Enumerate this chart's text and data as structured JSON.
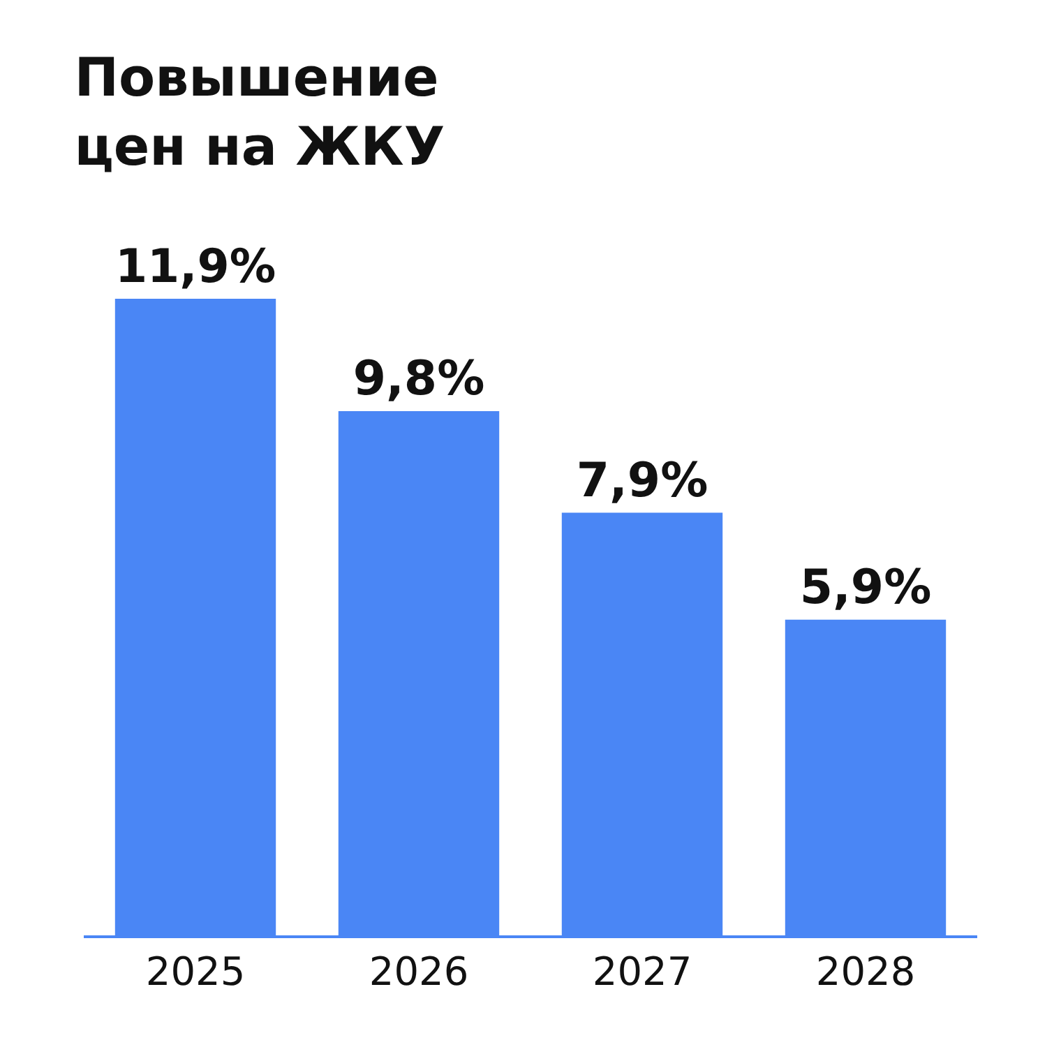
{
  "chart_data": {
    "type": "bar",
    "title": "Повышение\nцен на ЖКУ",
    "categories": [
      "2025",
      "2026",
      "2027",
      "2028"
    ],
    "values": [
      11.9,
      9.8,
      7.9,
      5.9
    ],
    "value_labels": [
      "11,9%",
      "9,8%",
      "7,9%",
      "5,9%"
    ],
    "color": "#4a86f5",
    "tick_labels": "x"
  }
}
